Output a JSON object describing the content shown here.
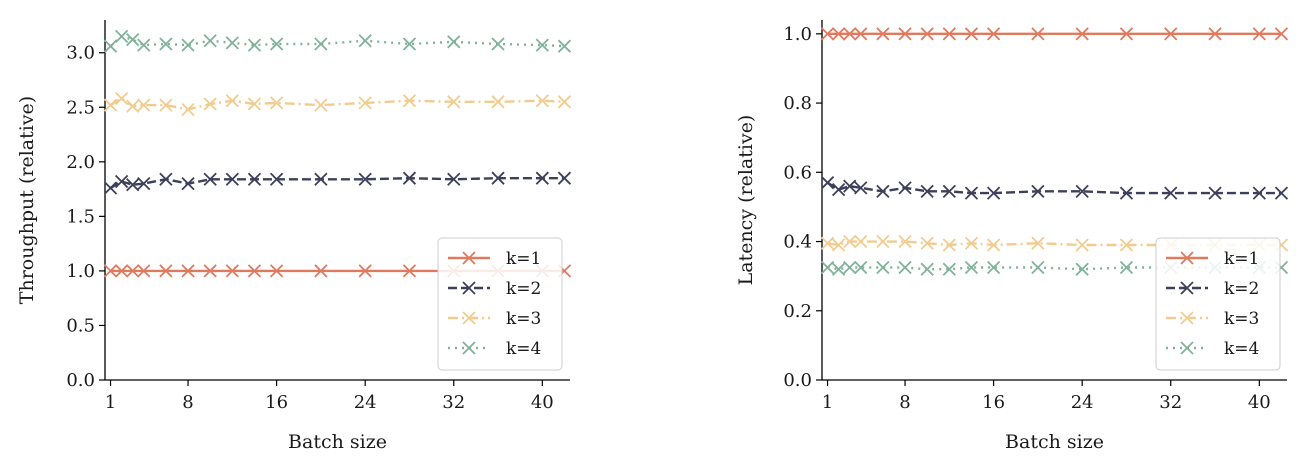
{
  "chart_data": [
    {
      "type": "line",
      "xlabel": "Batch size",
      "ylabel": "Throughput (relative)",
      "xlim": [
        0.5,
        42.5
      ],
      "ylim": [
        0.0,
        3.3
      ],
      "xticks": [
        1,
        8,
        16,
        24,
        32,
        40
      ],
      "yticks": [
        0.0,
        0.5,
        1.0,
        1.5,
        2.0,
        2.5,
        3.0
      ],
      "ytick_labels": [
        "0.0",
        "0.5",
        "1.0",
        "1.5",
        "2.0",
        "2.5",
        "3.0"
      ],
      "grid": false,
      "legend_position": "lower-right",
      "x": [
        1,
        2,
        3,
        4,
        6,
        8,
        10,
        12,
        14,
        16,
        20,
        24,
        28,
        32,
        36,
        40,
        42
      ],
      "series": [
        {
          "name": "k=1",
          "color": "#e07a5f",
          "dash": "solid",
          "values": [
            1.0,
            1.0,
            1.0,
            1.0,
            1.0,
            1.0,
            1.0,
            1.0,
            1.0,
            1.0,
            1.0,
            1.0,
            1.0,
            1.0,
            1.0,
            1.0,
            1.0
          ]
        },
        {
          "name": "k=2",
          "color": "#3d405b",
          "dash": "dashed",
          "values": [
            1.76,
            1.82,
            1.79,
            1.8,
            1.84,
            1.8,
            1.84,
            1.84,
            1.84,
            1.84,
            1.84,
            1.84,
            1.85,
            1.84,
            1.85,
            1.85,
            1.85
          ]
        },
        {
          "name": "k=3",
          "color": "#f2cc8f",
          "dash": "dashdot",
          "values": [
            2.52,
            2.58,
            2.51,
            2.52,
            2.52,
            2.48,
            2.53,
            2.56,
            2.53,
            2.54,
            2.52,
            2.54,
            2.56,
            2.55,
            2.55,
            2.56,
            2.55
          ]
        },
        {
          "name": "k=4",
          "color": "#81b29a",
          "dash": "dotted",
          "values": [
            3.06,
            3.15,
            3.12,
            3.07,
            3.08,
            3.07,
            3.11,
            3.09,
            3.07,
            3.08,
            3.08,
            3.11,
            3.08,
            3.1,
            3.08,
            3.07,
            3.06
          ]
        }
      ]
    },
    {
      "type": "line",
      "xlabel": "Batch size",
      "ylabel": "Latency (relative)",
      "xlim": [
        0.5,
        42.5
      ],
      "ylim": [
        0.0,
        1.04
      ],
      "xticks": [
        1,
        8,
        16,
        24,
        32,
        40
      ],
      "yticks": [
        0.0,
        0.2,
        0.4,
        0.6,
        0.8,
        1.0
      ],
      "ytick_labels": [
        "0.0",
        "0.2",
        "0.4",
        "0.6",
        "0.8",
        "1.0"
      ],
      "grid": false,
      "legend_position": "lower-right",
      "x": [
        1,
        2,
        3,
        4,
        6,
        8,
        10,
        12,
        14,
        16,
        20,
        24,
        28,
        32,
        36,
        40,
        42
      ],
      "series": [
        {
          "name": "k=1",
          "color": "#e07a5f",
          "dash": "solid",
          "values": [
            1.0,
            1.0,
            1.0,
            1.0,
            1.0,
            1.0,
            1.0,
            1.0,
            1.0,
            1.0,
            1.0,
            1.0,
            1.0,
            1.0,
            1.0,
            1.0,
            1.0
          ]
        },
        {
          "name": "k=2",
          "color": "#3d405b",
          "dash": "dashed",
          "values": [
            0.57,
            0.55,
            0.56,
            0.555,
            0.545,
            0.555,
            0.545,
            0.545,
            0.54,
            0.54,
            0.545,
            0.545,
            0.54,
            0.54,
            0.54,
            0.54,
            0.54
          ]
        },
        {
          "name": "k=3",
          "color": "#f2cc8f",
          "dash": "dashdot",
          "values": [
            0.395,
            0.39,
            0.4,
            0.4,
            0.4,
            0.4,
            0.395,
            0.39,
            0.395,
            0.39,
            0.395,
            0.39,
            0.39,
            0.39,
            0.39,
            0.39,
            0.39
          ]
        },
        {
          "name": "k=4",
          "color": "#81b29a",
          "dash": "dotted",
          "values": [
            0.325,
            0.32,
            0.325,
            0.325,
            0.325,
            0.325,
            0.32,
            0.32,
            0.325,
            0.325,
            0.325,
            0.32,
            0.325,
            0.325,
            0.325,
            0.325,
            0.325
          ]
        }
      ]
    }
  ]
}
